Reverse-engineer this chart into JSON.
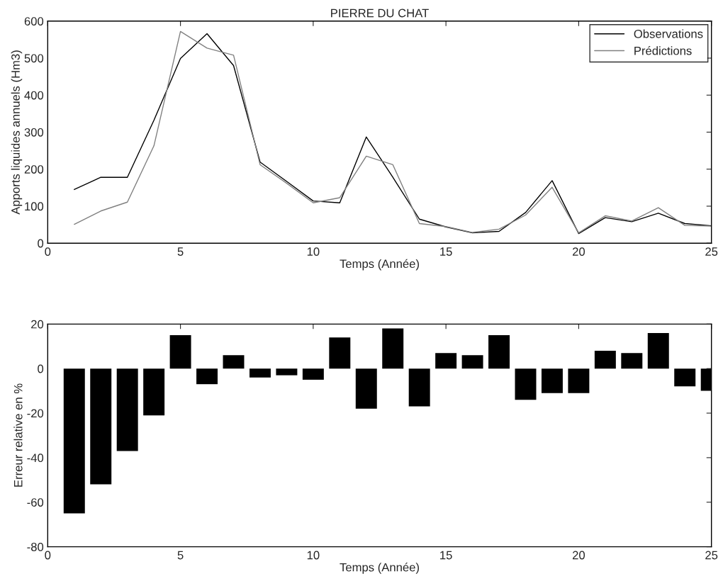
{
  "chart_data": [
    {
      "type": "line",
      "title": "PIERRE DU CHAT",
      "xlabel": "Temps (Année)",
      "ylabel": "Apports liquides annuels (Hm3)",
      "x": [
        1,
        2,
        3,
        4,
        5,
        6,
        7,
        8,
        9,
        10,
        11,
        12,
        13,
        14,
        15,
        16,
        17,
        18,
        19,
        20,
        21,
        22,
        23,
        24,
        25
      ],
      "series": [
        {
          "name": "Observations",
          "color": "#000000",
          "values": [
            145,
            178,
            178,
            332,
            499,
            566,
            480,
            219,
            167,
            114,
            109,
            287,
            178,
            65,
            44,
            28,
            32,
            83,
            169,
            26,
            69,
            58,
            81,
            53,
            47
          ]
        },
        {
          "name": "Prédictions",
          "color": "#808080",
          "values": [
            51,
            87,
            111,
            263,
            572,
            527,
            508,
            212,
            162,
            109,
            123,
            235,
            212,
            53,
            45,
            29,
            38,
            76,
            151,
            28,
            74,
            60,
            96,
            48,
            46
          ]
        }
      ],
      "xlim": [
        0,
        25
      ],
      "xticks": [
        0,
        5,
        10,
        15,
        20,
        25
      ],
      "ylim": [
        0,
        600
      ],
      "yticks": [
        0,
        100,
        200,
        300,
        400,
        500,
        600
      ],
      "legend": "top right",
      "grid": false,
      "line_style": "solid",
      "marker": "none"
    },
    {
      "type": "bar",
      "xlabel": "Temps (Année)",
      "ylabel": "Erreur relative en %",
      "x": [
        1,
        2,
        3,
        4,
        5,
        6,
        7,
        8,
        9,
        10,
        11,
        12,
        13,
        14,
        15,
        16,
        17,
        18,
        19,
        20,
        21,
        22,
        23,
        24,
        25
      ],
      "values": [
        -65,
        -52,
        -37,
        -21,
        15,
        -7,
        6,
        -4,
        -3,
        -5,
        14,
        -18,
        18,
        -17,
        7,
        6,
        15,
        -14,
        -11,
        -11,
        8,
        7,
        16,
        -8,
        -10
      ],
      "color": "#000000",
      "xlim": [
        0,
        25
      ],
      "xticks": [
        0,
        5,
        10,
        15,
        20,
        25
      ],
      "ylim": [
        -80,
        20
      ],
      "yticks": [
        -80,
        -60,
        -40,
        -20,
        0,
        20
      ],
      "grid": false
    }
  ]
}
